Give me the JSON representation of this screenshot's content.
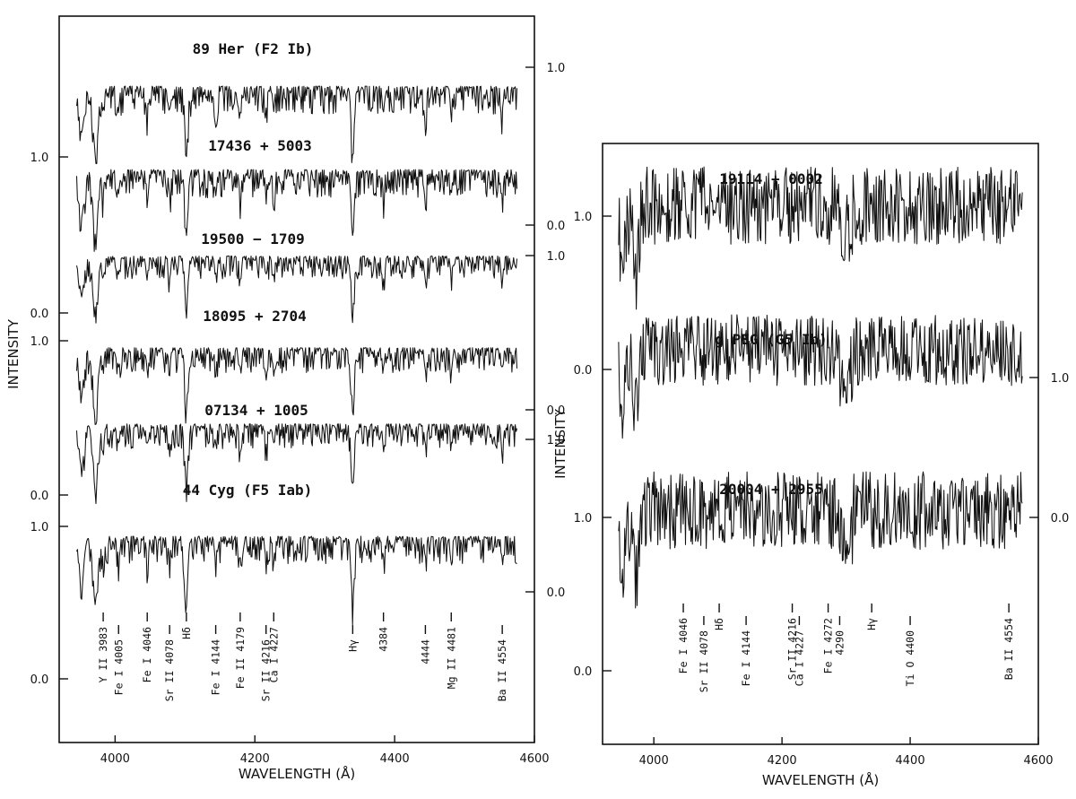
{
  "chart_data": [
    {
      "type": "line",
      "xlabel": "WAVELENGTH (Å)",
      "ylabel": "INTENSITY",
      "xlim": [
        3920,
        4600
      ],
      "xticks": [
        "4000",
        "4200",
        "4400",
        "4600"
      ],
      "series": [
        {
          "name": "89 Her (F2 Ib)",
          "left_ticks": [],
          "right_ticks": [
            "1.0",
            "0.0"
          ]
        },
        {
          "name": "17436 + 5003",
          "left_ticks": [
            "1.0"
          ],
          "right_ticks": []
        },
        {
          "name": "19500 − 1709",
          "left_ticks": [
            "0.0"
          ],
          "right_ticks": [
            "1.0",
            "0.0"
          ]
        },
        {
          "name": "18095 + 2704",
          "left_ticks": [
            "1.0"
          ],
          "right_ticks": []
        },
        {
          "name": "07134 + 1005",
          "left_ticks": [
            "0.0"
          ],
          "right_ticks": [
            "1.0",
            "0.0"
          ]
        },
        {
          "name": "44 Cyg (F5 Iab)",
          "left_ticks": [
            "1.0",
            "0.0"
          ],
          "right_ticks": []
        }
      ],
      "line_ids": [
        {
          "label": "Y II 3983",
          "wavelength": 3983
        },
        {
          "label": "Fe I 4005",
          "wavelength": 4005
        },
        {
          "label": "Fe I 4046",
          "wavelength": 4046
        },
        {
          "label": "Sr II 4078",
          "wavelength": 4078
        },
        {
          "label": "Hδ",
          "wavelength": 4102
        },
        {
          "label": "Fe I 4144",
          "wavelength": 4144
        },
        {
          "label": "Fe II 4179",
          "wavelength": 4179
        },
        {
          "label": "Sr II 4216",
          "wavelength": 4216
        },
        {
          "label": "Ca I 4227",
          "wavelength": 4227
        },
        {
          "label": "Hγ",
          "wavelength": 4340
        },
        {
          "label": "4384",
          "wavelength": 4384
        },
        {
          "label": "4444",
          "wavelength": 4444
        },
        {
          "label": "Mg II 4481",
          "wavelength": 4481
        },
        {
          "label": "Ba II 4554",
          "wavelength": 4554
        }
      ]
    },
    {
      "type": "line",
      "xlabel": "WAVELENGTH (Å)",
      "ylabel": "INTENSITY",
      "xlim": [
        3920,
        4600
      ],
      "xticks": [
        "4000",
        "4200",
        "4400",
        "4600"
      ],
      "series": [
        {
          "name": "19114 + 0002",
          "left_ticks": [
            "1.0"
          ],
          "right_ticks": []
        },
        {
          "name": "g PEG (G5 Ib)",
          "left_ticks": [
            "0.0"
          ],
          "right_ticks": [
            "1.0"
          ]
        },
        {
          "name": "20004 + 2955",
          "left_ticks": [
            "1.0",
            "0.0"
          ],
          "right_ticks": [
            "0.0"
          ]
        }
      ],
      "line_ids": [
        {
          "label": "Fe I 4046",
          "wavelength": 4046
        },
        {
          "label": "Sr II 4078",
          "wavelength": 4078
        },
        {
          "label": "Hδ",
          "wavelength": 4102
        },
        {
          "label": "Fe I 4144",
          "wavelength": 4144
        },
        {
          "label": "Sr II 4216",
          "wavelength": 4216
        },
        {
          "label": "Ca I 4227",
          "wavelength": 4227
        },
        {
          "label": "Fe I 4272",
          "wavelength": 4272
        },
        {
          "label": "4290",
          "wavelength": 4290
        },
        {
          "label": "Hγ",
          "wavelength": 4340
        },
        {
          "label": "Ti O 4400",
          "wavelength": 4400
        },
        {
          "label": "Ba II 4554",
          "wavelength": 4554
        }
      ]
    }
  ]
}
